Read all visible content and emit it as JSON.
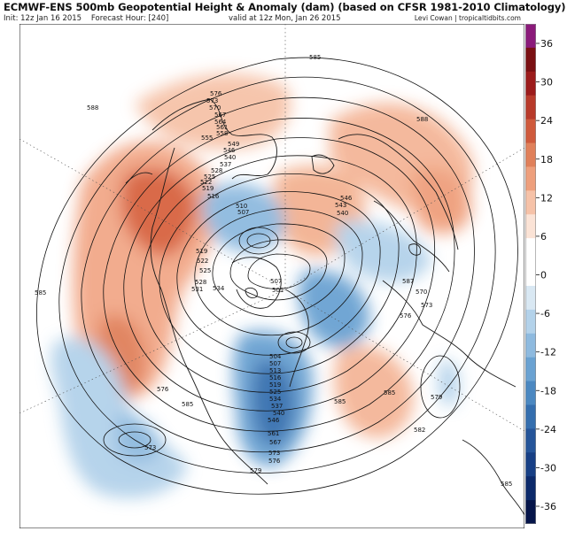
{
  "header": {
    "title": "ECMWF-ENS 500mb Geopotential Height & Anomaly (dam) (based on CFSR 1981-2010 Climatology)",
    "init": "Init: 12z Jan 16 2015",
    "forecast_hour": "Forecast Hour: [240]",
    "valid": "valid at 12z Mon, Jan 26 2015",
    "credit": "Levi Cowan | tropicaltidbits.com"
  },
  "colorbar": {
    "ticks": [
      "36",
      "30",
      "24",
      "18",
      "12",
      "6",
      "0",
      "-6",
      "-12",
      "-18",
      "-24",
      "-30",
      "-36"
    ],
    "colors": [
      "#8b1a7a",
      "#7a0f12",
      "#9c1b1b",
      "#b83a2a",
      "#cf5a3c",
      "#e0805a",
      "#ee9f7c",
      "#f6c2a8",
      "#fbe3d6",
      "#ffffff",
      "#ffffff",
      "#d9e8f3",
      "#b3d2ea",
      "#8ebadf",
      "#6aa2d2",
      "#4b88c1",
      "#346eae",
      "#25559a",
      "#173f85",
      "#0c2a6b",
      "#06154a"
    ]
  },
  "contour_labels": {
    "c585_n": "585",
    "c588_nw": "588",
    "c588_ne": "588",
    "c576": "576",
    "c573": "573",
    "c570": "570",
    "c567": "567",
    "c564": "564",
    "c561": "561",
    "c558": "558",
    "c555": "555",
    "c549": "549",
    "c546": "546",
    "c540": "540",
    "c537": "537",
    "c528": "528",
    "c525": "525",
    "c522": "522",
    "c519": "519",
    "c516": "516",
    "c510": "510",
    "c507": "507",
    "c546_e": "546",
    "c543_e": "543",
    "c540_e": "540",
    "c519_w": "519",
    "c522_w": "522",
    "c525_w": "525",
    "c528_w": "528",
    "c531_w": "531",
    "c534_w": "534",
    "c507_c": "507",
    "c501_c": "501",
    "c587_e": "587",
    "c570_e": "570",
    "c573_e": "573",
    "c576_e": "576",
    "c585_w": "585",
    "c585_sw": "585",
    "c573_sw": "573",
    "c576_sw": "576",
    "c585_se": "585",
    "c579_se": "579",
    "c582_se": "582",
    "c585_sw2": "585",
    "c585_far_se": "585",
    "c504_s": "504",
    "c507_s": "507",
    "c513_s": "513",
    "c516_s": "516",
    "c519_s": "519",
    "c525_s": "525",
    "c534_s": "534",
    "c537_s": "537",
    "c540_s": "540",
    "c546_s": "546",
    "c561_s": "561",
    "c567_s": "567",
    "c573_s": "573",
    "c576_s": "576",
    "c579_s": "579"
  }
}
